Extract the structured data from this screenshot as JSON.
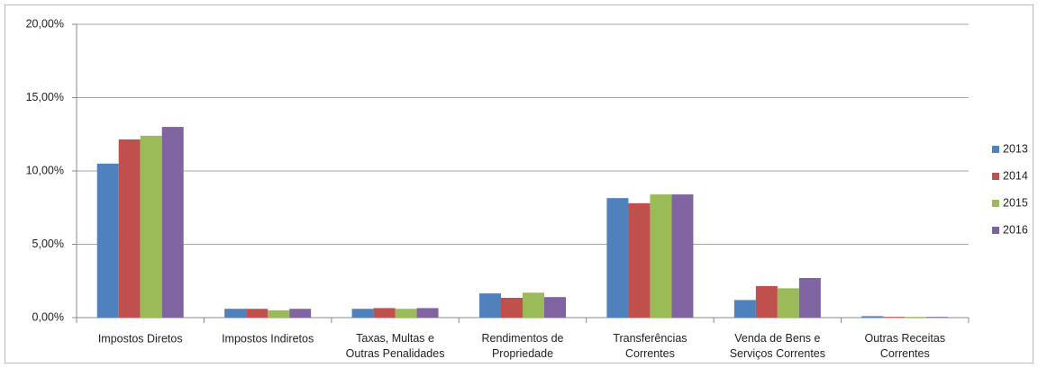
{
  "chart_data": {
    "type": "bar",
    "categories": [
      "Impostos Diretos",
      "Impostos Indiretos",
      "Taxas, Multas e\nOutras Penalidades",
      "Rendimentos de\nPropriedade",
      "Transferências\nCorrentes",
      "Venda de Bens e\nServiços Correntes",
      "Outras Receitas\nCorrentes"
    ],
    "series": [
      {
        "name": "2013",
        "color": "#4f81bd",
        "values": [
          10.5,
          0.6,
          0.6,
          1.65,
          8.15,
          1.2,
          0.1
        ]
      },
      {
        "name": "2014",
        "color": "#c0504d",
        "values": [
          12.15,
          0.6,
          0.65,
          1.35,
          7.8,
          2.15,
          0.05
        ]
      },
      {
        "name": "2015",
        "color": "#9bbb59",
        "values": [
          12.4,
          0.5,
          0.6,
          1.7,
          8.4,
          2.0,
          0.05
        ]
      },
      {
        "name": "2016",
        "color": "#8064a2",
        "values": [
          13.0,
          0.6,
          0.65,
          1.4,
          8.4,
          2.7,
          0.05
        ]
      }
    ],
    "ylim": [
      0,
      20
    ],
    "yticks": [
      {
        "value": 0,
        "label": "0,00%"
      },
      {
        "value": 5,
        "label": "5,00%"
      },
      {
        "value": 10,
        "label": "10,00%"
      },
      {
        "value": 15,
        "label": "15,00%"
      },
      {
        "value": 20,
        "label": "20,00%"
      }
    ],
    "grid": true,
    "legend": "right"
  }
}
